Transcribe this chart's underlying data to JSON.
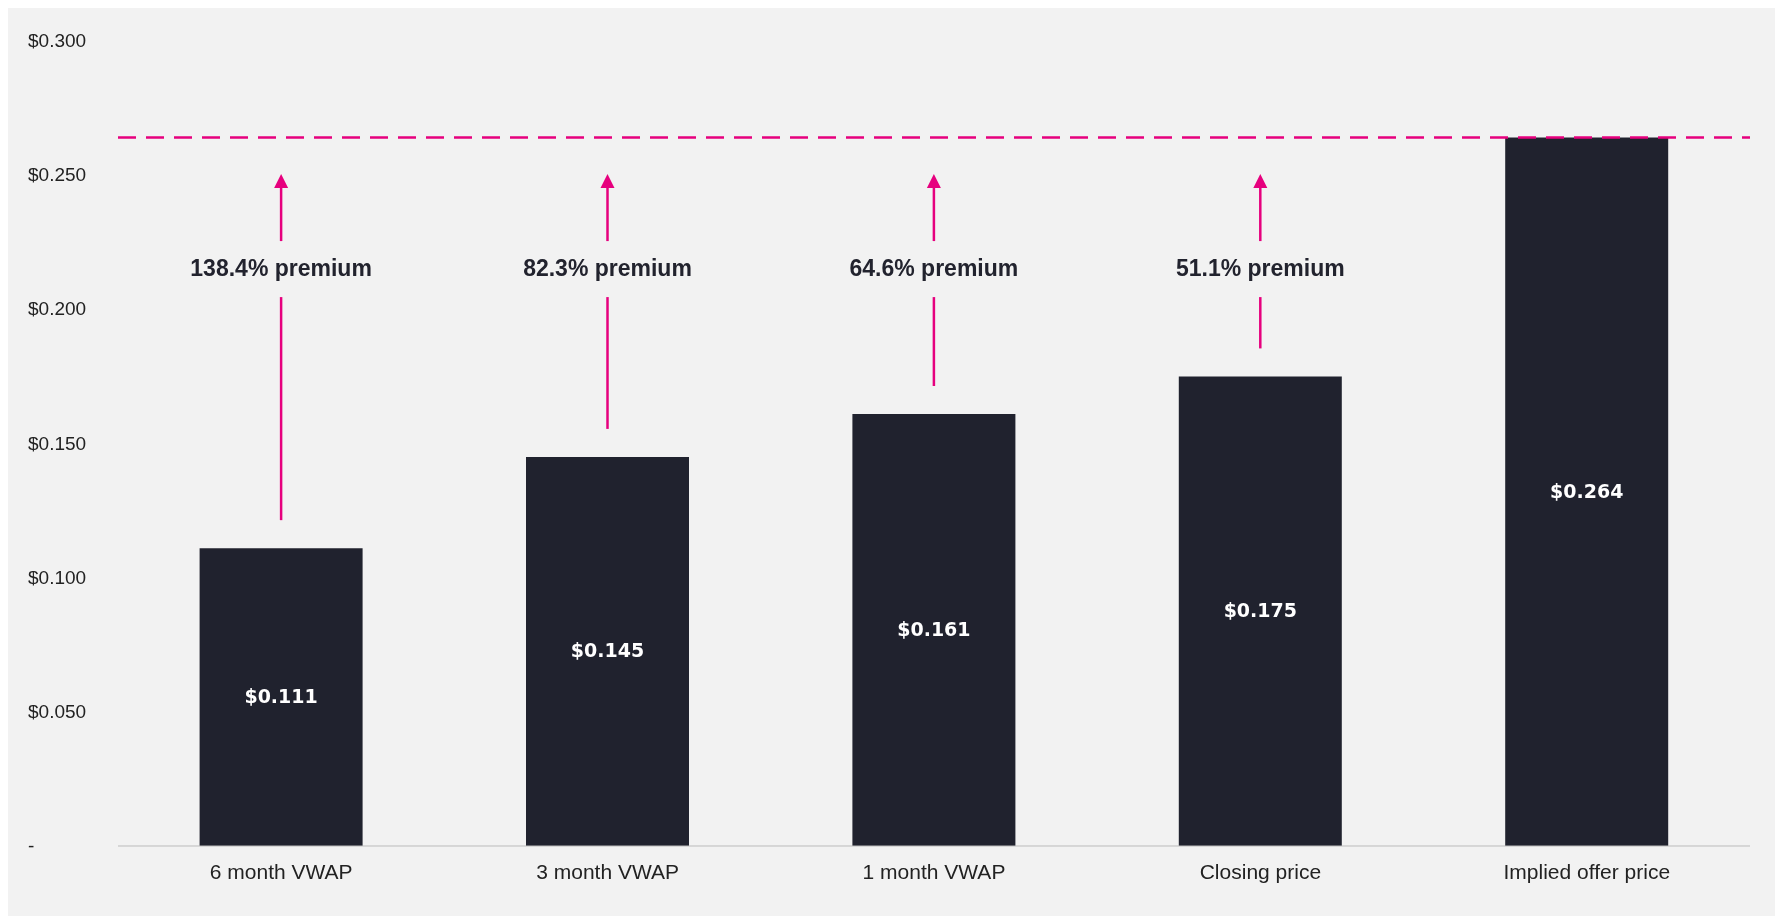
{
  "chart_data": {
    "type": "bar",
    "categories": [
      "6 month VWAP",
      "3 month VWAP",
      "1 month VWAP",
      "Closing price",
      "Implied offer price"
    ],
    "values": [
      0.111,
      0.145,
      0.161,
      0.175,
      0.264
    ],
    "value_labels": [
      "$0.111",
      "$0.145",
      "$0.161",
      "$0.175",
      "$0.264"
    ],
    "color": "#20222e",
    "ylim": [
      0,
      0.3
    ],
    "yticks": [
      {
        "value": 0,
        "label": "-"
      },
      {
        "value": 0.05,
        "label": "$0.050"
      },
      {
        "value": 0.1,
        "label": "$0.100"
      },
      {
        "value": 0.15,
        "label": "$0.150"
      },
      {
        "value": 0.2,
        "label": "$0.200"
      },
      {
        "value": 0.25,
        "label": "$0.250"
      },
      {
        "value": 0.3,
        "label": "$0.300"
      }
    ],
    "grid": false,
    "legend": false,
    "ref_lines": [
      {
        "axis": "y",
        "value": 0.264,
        "color": "#e6007e",
        "line_style": "dashed"
      }
    ],
    "annotations": [
      "138.4% premium",
      "82.3% premium",
      "64.6% premium",
      "51.1% premium"
    ]
  }
}
